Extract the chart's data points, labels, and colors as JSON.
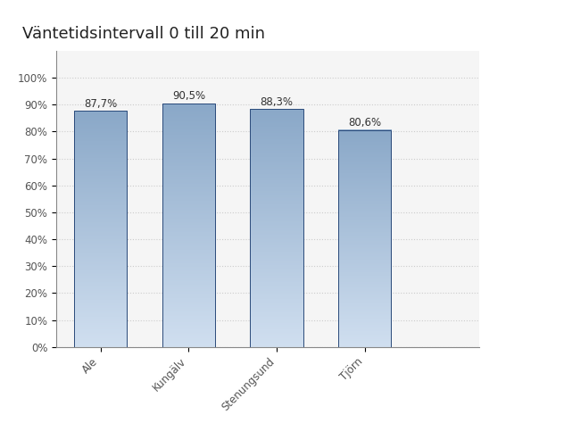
{
  "title": "Väntetidsintervall 0 till 20 min",
  "categories": [
    "Ale",
    "Kungälv",
    "Stenungsund",
    "Tjörn"
  ],
  "values": [
    87.7,
    90.5,
    88.3,
    80.6
  ],
  "labels": [
    "87,7%",
    "90,5%",
    "88,3%",
    "80,6%"
  ],
  "bar_color_top": "#8aa8c8",
  "bar_color_bottom": "#d0dff0",
  "bar_edge_color": "#2a4a7a",
  "background_color": "#ffffff",
  "plot_area_color": "#f5f5f5",
  "grid_color": "#cccccc",
  "ylim": [
    0,
    110
  ],
  "yticks": [
    0,
    10,
    20,
    30,
    40,
    50,
    60,
    70,
    80,
    90,
    100
  ],
  "ytick_labels": [
    "0%",
    "10%",
    "20%",
    "30%",
    "40%",
    "50%",
    "60%",
    "70%",
    "80%",
    "90%",
    "100%"
  ],
  "title_fontsize": 13,
  "tick_fontsize": 8.5,
  "label_fontsize": 8.5,
  "bar_width": 0.6,
  "xlim": [
    -0.5,
    4.5
  ]
}
